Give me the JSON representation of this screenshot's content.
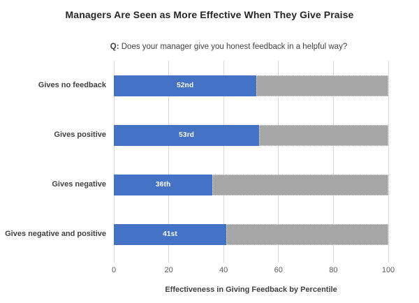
{
  "title": "Managers Are Seen as More Effective When They Give Praise",
  "subtitle": {
    "prefix": "Q:",
    "text": " Does your manager give you honest feedback in a helpful way?"
  },
  "chart_data": {
    "type": "bar",
    "orientation": "horizontal",
    "stacked": true,
    "categories": [
      "Gives no feedback",
      "Gives positive",
      "Gives negative",
      "Gives negative and positive"
    ],
    "values": [
      52,
      53,
      36,
      41
    ],
    "value_labels": [
      "52nd",
      "53rd",
      "36th",
      "41st"
    ],
    "series": [
      {
        "name": "effectiveness-percentile",
        "values": [
          52,
          53,
          36,
          41
        ],
        "color": "#4472C4"
      },
      {
        "name": "remainder-to-100",
        "values": [
          48,
          47,
          64,
          59
        ],
        "color": "#A6A6A6"
      }
    ],
    "xlabel": "Effectiveness in Giving Feedback by Percentile",
    "ylabel": "",
    "xlim": [
      0,
      100
    ],
    "x_ticks": [
      0,
      20,
      40,
      60,
      80,
      100
    ],
    "grid": "vertical-only",
    "legend": "none",
    "colors": {
      "bar_fill": "#4472C4",
      "bar_remainder": "#A6A6A6",
      "gridline": "#D9D9D9",
      "title_text": "#262626",
      "label_text": "#404040",
      "tick_text": "#595959",
      "value_label_text": "#FFFFFF"
    }
  }
}
